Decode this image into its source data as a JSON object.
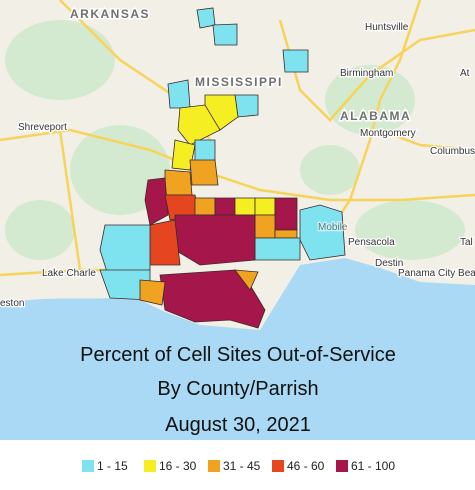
{
  "map": {
    "labels": [
      "ARKANSAS",
      "MISSISSIPPI",
      "ALABAMA",
      "Huntsville",
      "Birmingham",
      "Montgomery",
      "Columbus",
      "Shreveport",
      "Lake Charle",
      "eston",
      "Pensacola",
      "Destin",
      "Panama City Beach",
      "At",
      "Tal",
      "Mobile"
    ]
  },
  "caption": {
    "lines": [
      "Percent of Cell Sites Out-of-Service",
      "By County/Parrish",
      "August 30, 2021"
    ]
  },
  "legend": {
    "items": [
      {
        "label": "1 - 15",
        "color": "#7fe3ef"
      },
      {
        "label": "16 - 30",
        "color": "#f4ee22"
      },
      {
        "label": "31 - 45",
        "color": "#f0a321"
      },
      {
        "label": "46 - 60",
        "color": "#e6461f"
      },
      {
        "label": "61 - 100",
        "color": "#a5174a"
      }
    ]
  }
}
